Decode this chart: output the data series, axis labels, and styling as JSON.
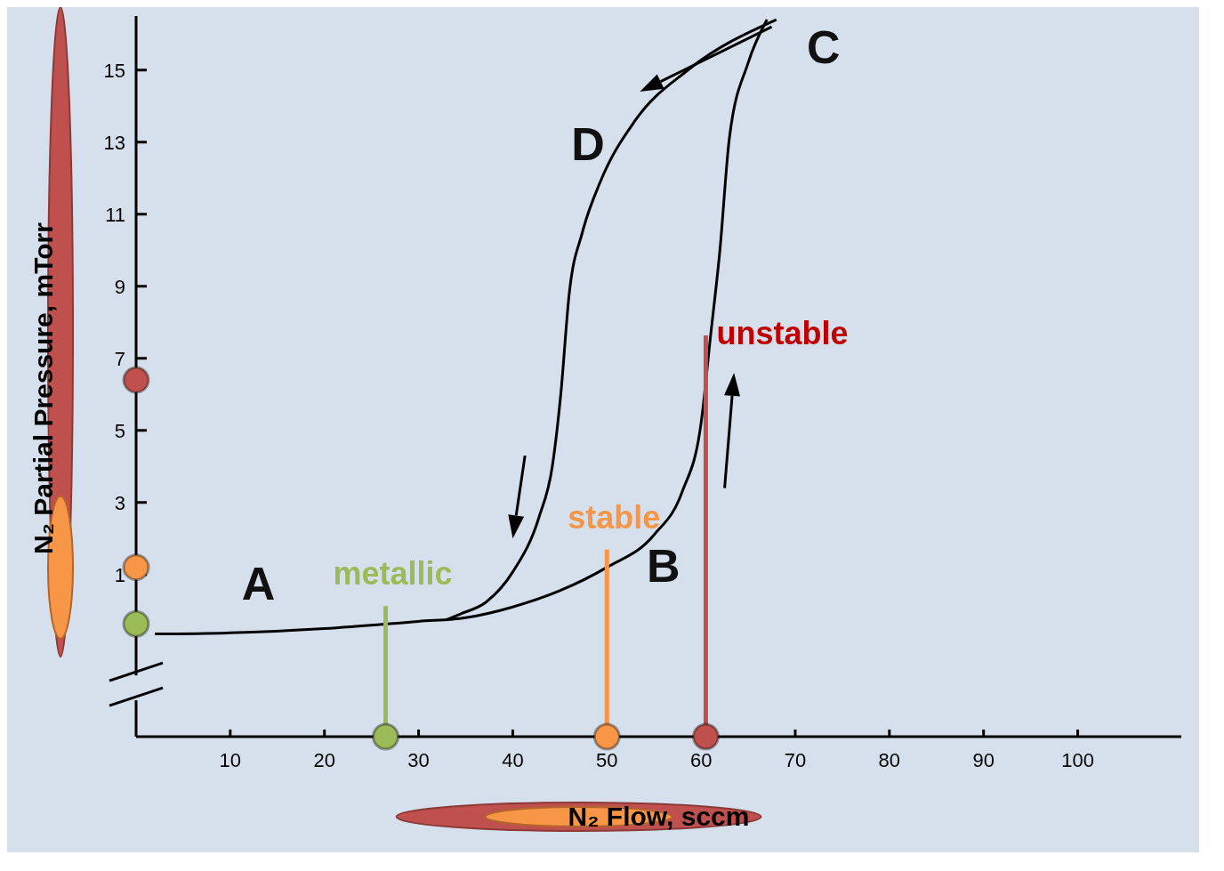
{
  "chart_data": {
    "type": "line",
    "xlabel": "N₂ Flow, sccm",
    "ylabel": "N₂ Partial Pressure, mTorr",
    "xlim": [
      0,
      111
    ],
    "xticks": [
      10,
      20,
      30,
      40,
      50,
      60,
      70,
      80,
      90,
      100
    ],
    "ylim": [
      -3.5,
      16.5
    ],
    "yticks": [
      1,
      3,
      5,
      7,
      9,
      11,
      13,
      15
    ],
    "grid": false,
    "marker": "none",
    "line_style": "solid",
    "series": [
      {
        "color": "#000000",
        "x": [
          2,
          10,
          20,
          30,
          35,
          40,
          45,
          50,
          55,
          58,
          60,
          61,
          62,
          63,
          65,
          67
        ],
        "values": [
          -0.65,
          -0.62,
          -0.5,
          -0.3,
          -0.2,
          0.1,
          0.55,
          1.2,
          2.1,
          3.3,
          5.2,
          7.6,
          10,
          13.1,
          15.2,
          16.4
        ]
      },
      {
        "color": "#000000",
        "x": [
          33,
          34.4,
          37.2,
          40,
          42.8,
          44.2,
          45.1,
          46,
          47.4,
          49.3,
          53,
          58.6,
          68
        ],
        "values": [
          -0.25,
          -0.1,
          0.24,
          1.07,
          2.6,
          4,
          6,
          8.8,
          10.5,
          11.9,
          13.6,
          15,
          16.4
        ]
      }
    ],
    "annotations": [
      "A",
      "B",
      "C",
      "D",
      {
        "text": "metallic",
        "x": 26.5,
        "y": -0.37
      },
      {
        "text": "stable",
        "x": 50,
        "y": 1.2
      },
      {
        "text": "unstable",
        "x": 60.5,
        "y": 6.4
      }
    ]
  }
}
